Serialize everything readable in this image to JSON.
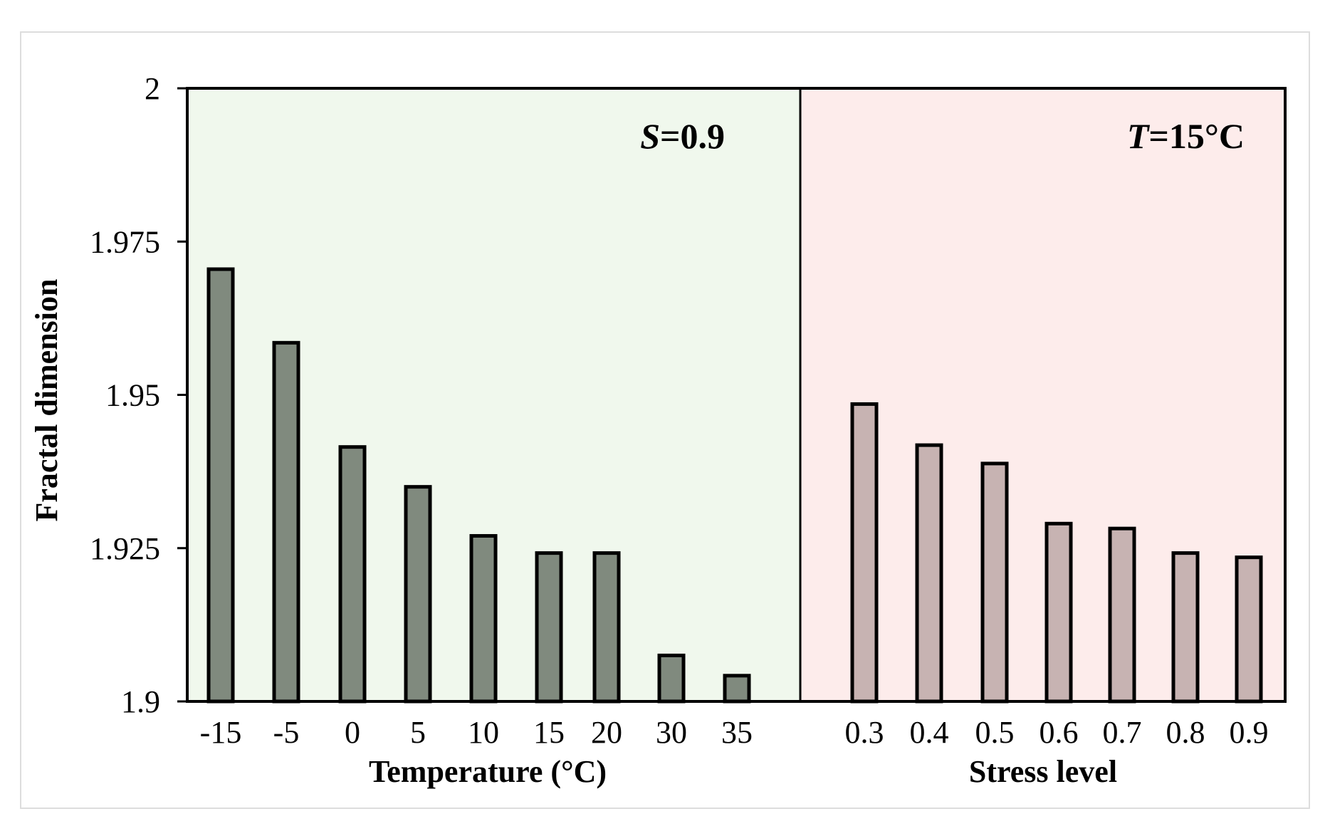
{
  "chart_data": {
    "type": "bar",
    "ylabel": "Fractal dimension",
    "ylim": [
      1.9,
      2.0
    ],
    "yticks": [
      "1.9",
      "1.925",
      "1.95",
      "1.975",
      "2"
    ],
    "ytick_values": [
      1.9,
      1.925,
      1.95,
      1.975,
      2.0
    ],
    "grid": false,
    "panels": [
      {
        "annotation": {
          "italic": "S",
          "rest": "=0.9"
        },
        "xlabel": "Temperature (°C)",
        "categories": [
          "-15",
          "-5",
          "0",
          "5",
          "10",
          "15",
          "20",
          "30",
          "35"
        ],
        "values": [
          1.9705,
          1.9585,
          1.9415,
          1.935,
          1.927,
          1.9242,
          1.9242,
          1.9075,
          1.9042
        ],
        "color": "#808a7e",
        "background": "#f0f8ed"
      },
      {
        "annotation": {
          "italic": "T",
          "rest": "=15°C"
        },
        "xlabel": "Stress level",
        "categories": [
          "0.3",
          "0.4",
          "0.5",
          "0.6",
          "0.7",
          "0.8",
          "0.9"
        ],
        "values": [
          1.9485,
          1.9418,
          1.9388,
          1.929,
          1.9282,
          1.9242,
          1.9235
        ],
        "color": "#c7b3b2",
        "background": "#fdeceb"
      }
    ]
  }
}
